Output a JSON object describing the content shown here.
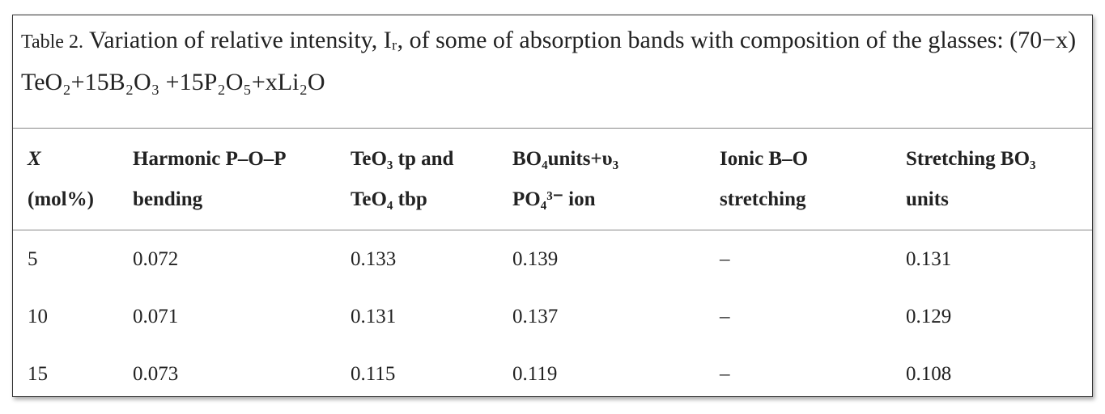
{
  "caption": {
    "label": "Table 2.",
    "text": "Variation of relative intensity, Iᵣ, of some of absorption bands with composition of the glasses: (70−x) TeO₂+15B₂O₃ +15P₂O₅+xLi₂O"
  },
  "table": {
    "header": [
      [
        "X",
        "(mol%)"
      ],
      [
        "Harmonic P–O–P",
        "bending"
      ],
      [
        "TeO₃ tp and",
        "TeO₄ tbp"
      ],
      [
        "BO₄units+υ₃",
        "PO₄³⁻ ion"
      ],
      [
        "Ionic B–O",
        "stretching"
      ],
      [
        "Stretching BO₃",
        "units"
      ]
    ],
    "rows": [
      [
        "5",
        "0.072",
        "0.133",
        "0.139",
        "–",
        "0.131"
      ],
      [
        "10",
        "0.071",
        "0.131",
        "0.137",
        "–",
        "0.129"
      ],
      [
        "15",
        "0.073",
        "0.115",
        "0.119",
        "–",
        "0.108"
      ]
    ]
  }
}
